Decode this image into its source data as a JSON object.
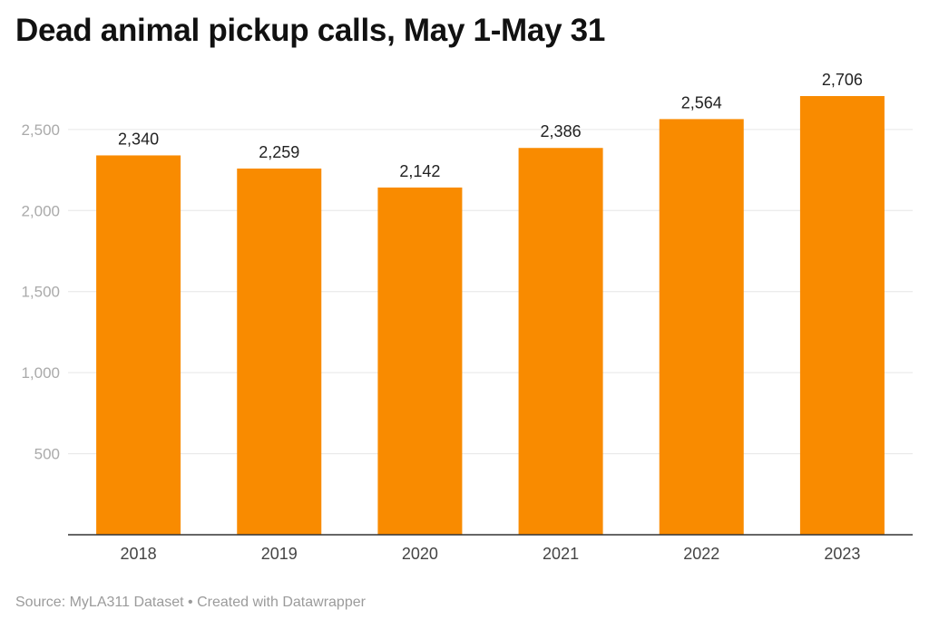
{
  "title": "Dead animal pickup calls, May 1-May 31",
  "footer": "Source: MyLA311 Dataset • Created with Datawrapper",
  "colors": {
    "bar": "#F98B00",
    "grid": "#e6e6e6",
    "axis": "#333333",
    "tick_text": "#aaaaaa",
    "xtick_text": "#444444",
    "label_text": "#222222"
  },
  "chart_data": {
    "type": "bar",
    "categories": [
      "2018",
      "2019",
      "2020",
      "2021",
      "2022",
      "2023"
    ],
    "values": [
      2340,
      2259,
      2142,
      2386,
      2564,
      2706
    ],
    "value_labels": [
      "2,340",
      "2,259",
      "2,142",
      "2,386",
      "2,564",
      "2,706"
    ],
    "title": "Dead animal pickup calls, May 1-May 31",
    "xlabel": "",
    "ylabel": "",
    "ylim": [
      0,
      2706
    ],
    "yticks": [
      500,
      1000,
      1500,
      2000,
      2500
    ],
    "ytick_labels": [
      "500",
      "1,000",
      "1,500",
      "2,000",
      "2,500"
    ],
    "grid": true,
    "legend": "none"
  }
}
